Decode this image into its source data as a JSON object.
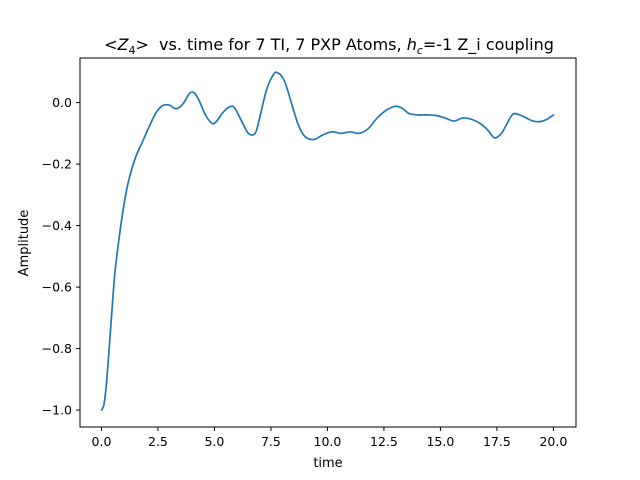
{
  "chart_data": {
    "type": "line",
    "title_parts": {
      "lt": "<",
      "z": "Z",
      "z_sub": "4",
      "gt": ">",
      "middle": "  vs. time for 7 TI, 7 PXP Atoms, ",
      "h": "h",
      "h_sub": "c",
      "end": "=-1 Z_i coupling"
    },
    "xlabel": "time",
    "ylabel": "Amplitude",
    "xlim": [
      -0.95,
      21.0
    ],
    "ylim": [
      -1.055,
      0.145
    ],
    "xticks": [
      0.0,
      2.5,
      5.0,
      7.5,
      10.0,
      12.5,
      15.0,
      17.5,
      20.0
    ],
    "xtick_labels": [
      "0.0",
      "2.5",
      "5.0",
      "7.5",
      "10.0",
      "12.5",
      "15.0",
      "17.5",
      "20.0"
    ],
    "yticks": [
      0.0,
      -0.2,
      -0.4,
      -0.6,
      -0.8,
      -1.0
    ],
    "ytick_labels": [
      "0.0",
      "−0.2",
      "−0.4",
      "−0.6",
      "−0.8",
      "−1.0"
    ],
    "grid": false,
    "series": [
      {
        "color": "#1f77b4",
        "x": [
          0.0,
          0.1,
          0.2,
          0.3,
          0.4,
          0.5,
          0.6,
          0.8,
          1.0,
          1.2,
          1.5,
          1.8,
          2.1,
          2.4,
          2.7,
          3.0,
          3.3,
          3.6,
          3.9,
          4.1,
          4.3,
          4.6,
          4.9,
          5.1,
          5.4,
          5.7,
          5.9,
          6.2,
          6.5,
          6.8,
          7.0,
          7.3,
          7.6,
          7.8,
          8.1,
          8.4,
          8.7,
          9.0,
          9.4,
          9.8,
          10.2,
          10.6,
          11.0,
          11.4,
          11.8,
          12.2,
          12.6,
          13.0,
          13.3,
          13.6,
          14.0,
          14.4,
          14.8,
          15.2,
          15.6,
          16.0,
          16.4,
          16.8,
          17.1,
          17.4,
          17.7,
          17.9,
          18.2,
          18.5,
          18.8,
          19.1,
          19.4,
          19.7,
          20.0
        ],
        "y": [
          -1.0,
          -0.985,
          -0.93,
          -0.84,
          -0.74,
          -0.64,
          -0.55,
          -0.43,
          -0.33,
          -0.255,
          -0.18,
          -0.13,
          -0.08,
          -0.035,
          -0.01,
          -0.008,
          -0.02,
          -0.005,
          0.03,
          0.032,
          0.01,
          -0.04,
          -0.068,
          -0.06,
          -0.03,
          -0.013,
          -0.018,
          -0.06,
          -0.1,
          -0.1,
          -0.05,
          0.04,
          0.09,
          0.097,
          0.07,
          0.0,
          -0.07,
          -0.11,
          -0.12,
          -0.105,
          -0.095,
          -0.1,
          -0.095,
          -0.1,
          -0.085,
          -0.05,
          -0.025,
          -0.012,
          -0.018,
          -0.035,
          -0.04,
          -0.04,
          -0.042,
          -0.05,
          -0.06,
          -0.05,
          -0.055,
          -0.07,
          -0.09,
          -0.115,
          -0.1,
          -0.075,
          -0.038,
          -0.04,
          -0.05,
          -0.06,
          -0.062,
          -0.055,
          -0.04
        ]
      }
    ]
  }
}
